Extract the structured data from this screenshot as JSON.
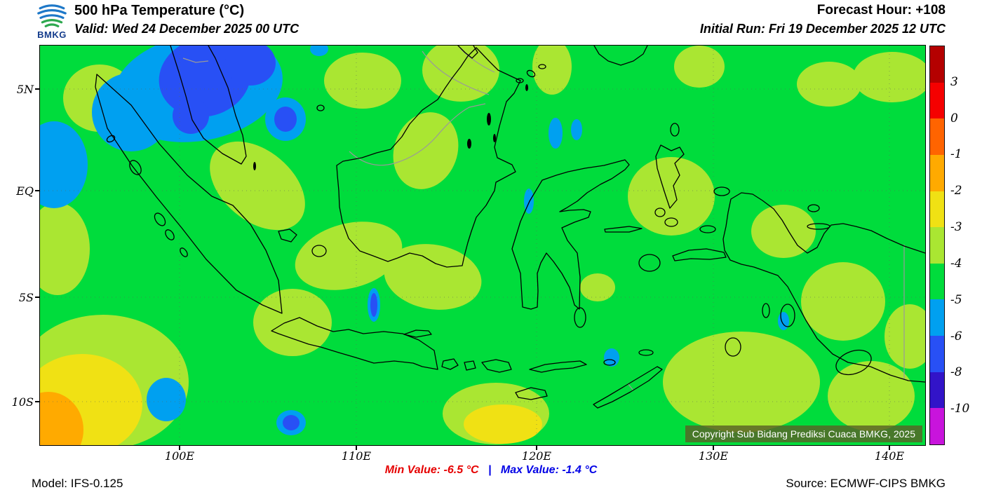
{
  "header": {
    "logo_text": "BMKG",
    "title": "500 hPa Temperature (°C)",
    "valid": "Valid: Wed 24 December 2025 00 UTC",
    "forecast_hour": "Forecast Hour: +108",
    "initial_run": "Initial Run: Fri 19 December 2025 12 UTC"
  },
  "map": {
    "lat_labels": [
      "5N",
      "EQ",
      "5S",
      "10S"
    ],
    "lon_labels": [
      "100E",
      "110E",
      "120E",
      "130E",
      "140E"
    ],
    "copyright": "Copyright Sub Bidang Prediksi Cuaca BMKG, 2025"
  },
  "colorbar": {
    "tick_labels": [
      "3",
      "0",
      "-1",
      "-2",
      "-3",
      "-4",
      "-5",
      "-6",
      "-8",
      "-10"
    ],
    "colors_top_to_bottom": [
      "#b40000",
      "#f50000",
      "#ff6400",
      "#ffaa00",
      "#f0e114",
      "#aae632",
      "#00dc3c",
      "#00a0f0",
      "#2850f5",
      "#3214c8",
      "#c814dc"
    ]
  },
  "footer": {
    "model": "Model: IFS-0.125",
    "min_value": "Min Value: -6.5 °C",
    "separator": "|",
    "max_value": "Max Value: -1.4 °C",
    "source": "Source: ECMWF-CIPS BMKG"
  }
}
